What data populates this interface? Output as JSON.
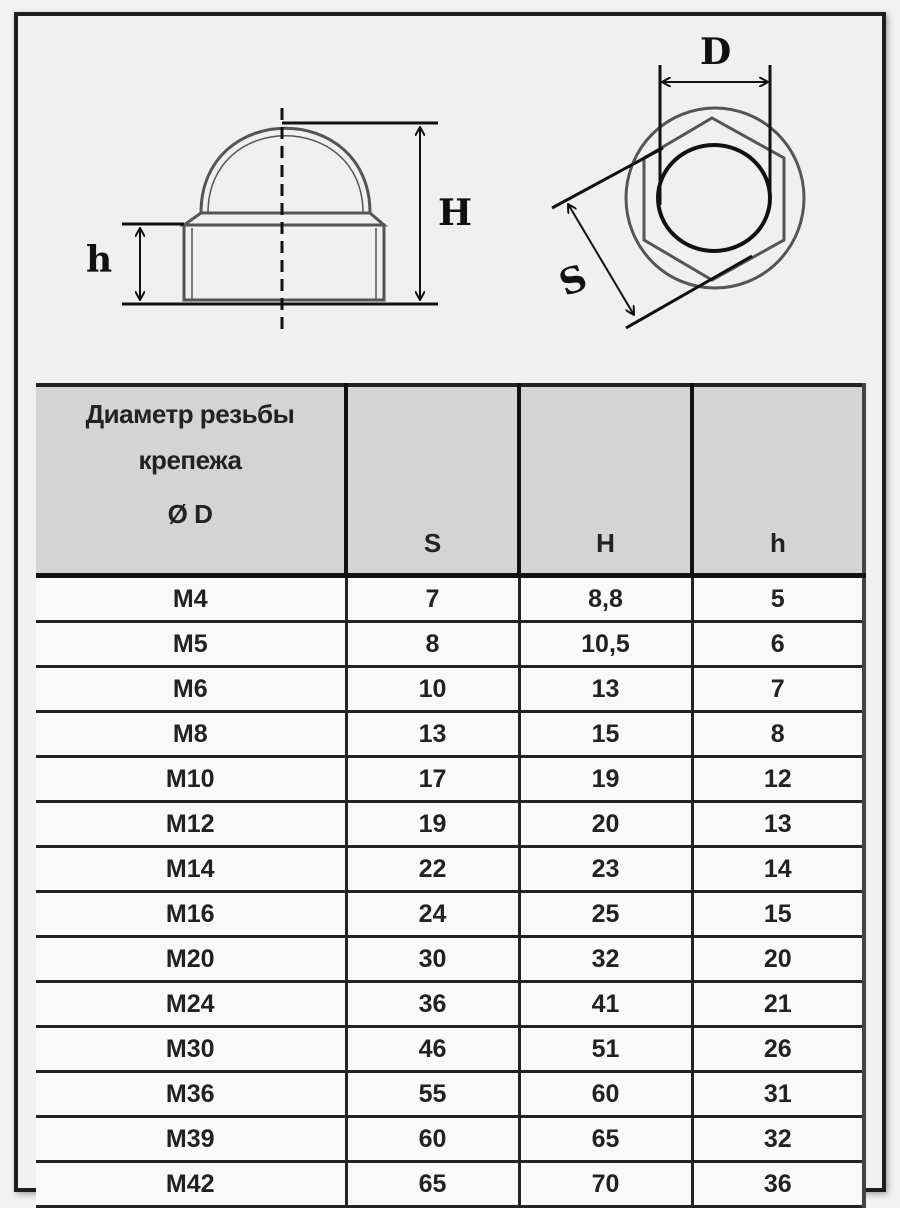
{
  "diagram": {
    "side_view_labels": {
      "total_height": "H",
      "skirt_height": "h"
    },
    "top_view_labels": {
      "thread_diameter": "D",
      "wrench_size": "S"
    }
  },
  "table": {
    "headers": {
      "diameter_line1": "Диаметр резьбы",
      "diameter_line2": "крепежа",
      "diameter_line3": "Ø D",
      "s": "S",
      "h_total": "H",
      "h_skirt": "h"
    },
    "rows": [
      {
        "d": "M4",
        "s": "7",
        "H": "8,8",
        "h": "5"
      },
      {
        "d": "M5",
        "s": "8",
        "H": "10,5",
        "h": "6"
      },
      {
        "d": "M6",
        "s": "10",
        "H": "13",
        "h": "7"
      },
      {
        "d": "M8",
        "s": "13",
        "H": "15",
        "h": "8"
      },
      {
        "d": "M10",
        "s": "17",
        "H": "19",
        "h": "12"
      },
      {
        "d": "M12",
        "s": "19",
        "H": "20",
        "h": "13"
      },
      {
        "d": "M14",
        "s": "22",
        "H": "23",
        "h": "14"
      },
      {
        "d": "M16",
        "s": "24",
        "H": "25",
        "h": "15"
      },
      {
        "d": "M20",
        "s": "30",
        "H": "32",
        "h": "20"
      },
      {
        "d": "M24",
        "s": "36",
        "H": "41",
        "h": "21"
      },
      {
        "d": "M30",
        "s": "46",
        "H": "51",
        "h": "26"
      },
      {
        "d": "M36",
        "s": "55",
        "H": "60",
        "h": "31"
      },
      {
        "d": "M39",
        "s": "60",
        "H": "65",
        "h": "32"
      },
      {
        "d": "M42",
        "s": "65",
        "H": "70",
        "h": "36"
      }
    ]
  }
}
